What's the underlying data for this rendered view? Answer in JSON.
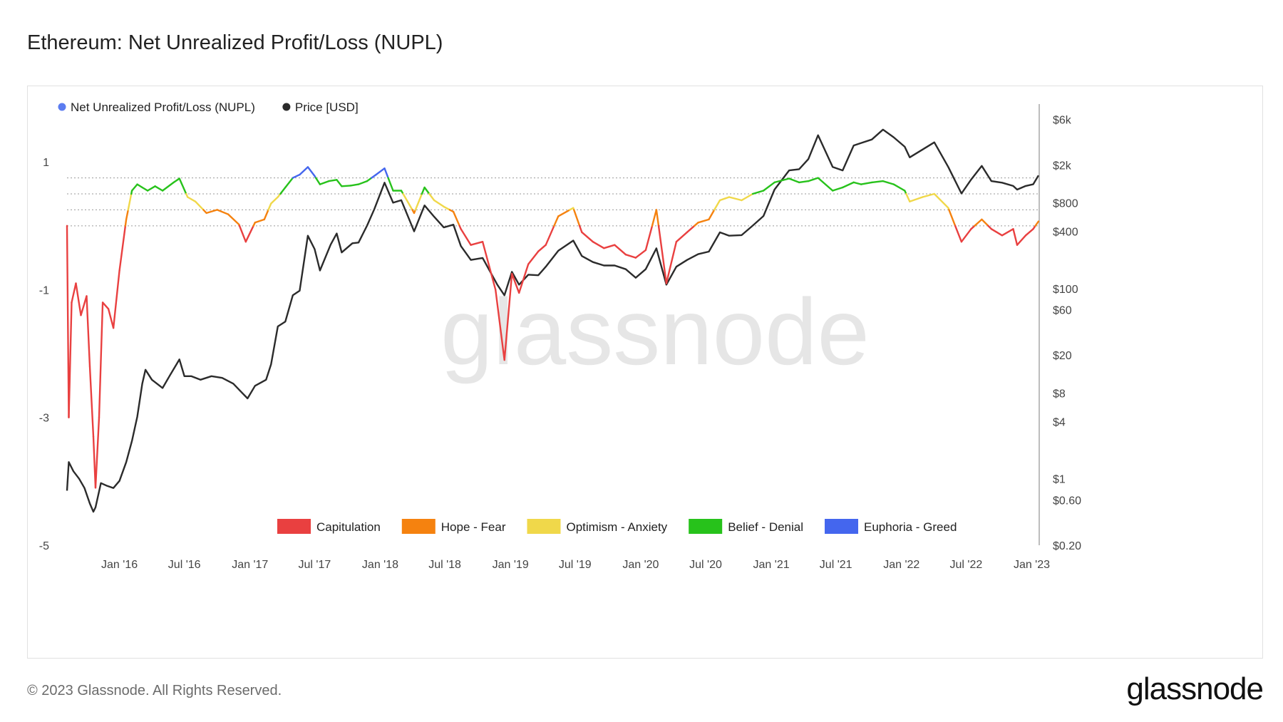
{
  "title": "Ethereum: Net Unrealized Profit/Loss (NUPL)",
  "footer": {
    "copyright": "© 2023 Glassnode. All Rights Reserved.",
    "brand": "glassnode"
  },
  "watermark": "glassnode",
  "colors": {
    "capitulation": "#e94040",
    "hope_fear": "#f5820f",
    "optimism_anxiety": "#f0d84a",
    "belief_denial": "#27c21b",
    "euphoria_greed": "#4466ee",
    "nupl_legend": "#5b7cf0",
    "price": "#2b2b2b"
  },
  "chart_data": {
    "type": "line",
    "title": "Ethereum: Net Unrealized Profit/Loss (NUPL)",
    "legend_top": [
      "Net Unrealized Profit/Loss (NUPL)",
      "Price [USD]"
    ],
    "legend_bottom": [
      "Capitulation",
      "Hope - Fear",
      "Optimism - Anxiety",
      "Belief - Denial",
      "Euphoria - Greed"
    ],
    "x_range": [
      "2015-08-07",
      "2023-01-20"
    ],
    "x_ticks": [
      "Jan '16",
      "Jul '16",
      "Jan '17",
      "Jul '17",
      "Jan '18",
      "Jul '18",
      "Jan '19",
      "Jul '19",
      "Jan '20",
      "Jul '20",
      "Jan '21",
      "Jul '21",
      "Jan '22",
      "Jul '22",
      "Jan '23"
    ],
    "x_tick_dates": [
      "2016-01-01",
      "2016-07-01",
      "2017-01-01",
      "2017-07-01",
      "2018-01-01",
      "2018-07-01",
      "2019-01-01",
      "2019-07-01",
      "2020-01-01",
      "2020-07-01",
      "2021-01-01",
      "2021-07-01",
      "2022-01-01",
      "2022-07-01",
      "2023-01-01"
    ],
    "y_left": {
      "ticks": [
        "1",
        "-1",
        "-3",
        "-5"
      ],
      "tick_values": [
        1,
        -1,
        -3,
        -5
      ],
      "range": [
        -5.0,
        1.85
      ]
    },
    "y_right": {
      "scale": "log",
      "range": [
        0.2,
        8000
      ],
      "ticks": [
        "$6k",
        "$2k",
        "$800",
        "$400",
        "$100",
        "$60",
        "$20",
        "$8",
        "$4",
        "$1",
        "$0.60",
        "$0.20"
      ],
      "tick_values": [
        6000,
        2000,
        800,
        400,
        100,
        60,
        20,
        8,
        4,
        1,
        0.6,
        0.2
      ]
    },
    "zone_thresholds": [
      0,
      0.25,
      0.5,
      0.75
    ],
    "series": [
      {
        "name": "Net Unrealized Profit/Loss (NUPL)",
        "axis": "left",
        "dates": [
          "2015-08-07",
          "2015-08-12",
          "2015-08-20",
          "2015-09-01",
          "2015-09-15",
          "2015-10-01",
          "2015-10-10",
          "2015-10-20",
          "2015-10-26",
          "2015-11-05",
          "2015-11-15",
          "2015-12-01",
          "2015-12-15",
          "2016-01-01",
          "2016-01-20",
          "2016-02-05",
          "2016-02-20",
          "2016-03-05",
          "2016-03-20",
          "2016-04-10",
          "2016-05-01",
          "2016-06-01",
          "2016-06-17",
          "2016-07-10",
          "2016-08-01",
          "2016-09-01",
          "2016-10-01",
          "2016-11-01",
          "2016-12-01",
          "2016-12-20",
          "2017-01-15",
          "2017-02-10",
          "2017-03-01",
          "2017-03-20",
          "2017-04-10",
          "2017-05-01",
          "2017-05-20",
          "2017-06-12",
          "2017-07-01",
          "2017-07-16",
          "2017-08-10",
          "2017-09-01",
          "2017-09-15",
          "2017-10-10",
          "2017-11-01",
          "2017-11-25",
          "2017-12-20",
          "2018-01-13",
          "2018-02-06",
          "2018-03-01",
          "2018-04-06",
          "2018-05-05",
          "2018-06-01",
          "2018-06-28",
          "2018-07-25",
          "2018-08-15",
          "2018-09-12",
          "2018-10-15",
          "2018-11-20",
          "2018-12-15",
          "2019-01-05",
          "2019-01-25",
          "2019-02-20",
          "2019-03-20",
          "2019-04-10",
          "2019-05-15",
          "2019-06-26",
          "2019-07-20",
          "2019-08-20",
          "2019-09-20",
          "2019-10-20",
          "2019-11-20",
          "2019-12-18",
          "2020-01-15",
          "2020-02-14",
          "2020-03-13",
          "2020-04-10",
          "2020-05-10",
          "2020-06-10",
          "2020-07-10",
          "2020-08-10",
          "2020-09-05",
          "2020-10-10",
          "2020-11-10",
          "2020-12-10",
          "2021-01-10",
          "2021-02-20",
          "2021-03-20",
          "2021-04-15",
          "2021-05-12",
          "2021-06-22",
          "2021-07-20",
          "2021-08-20",
          "2021-09-10",
          "2021-10-10",
          "2021-11-10",
          "2021-12-10",
          "2022-01-10",
          "2022-01-24",
          "2022-03-01",
          "2022-04-03",
          "2022-05-12",
          "2022-06-18",
          "2022-07-15",
          "2022-08-14",
          "2022-09-10",
          "2022-10-10",
          "2022-11-10",
          "2022-11-21",
          "2022-12-15",
          "2023-01-05",
          "2023-01-20"
        ],
        "values": [
          0.0,
          -3.0,
          -1.2,
          -0.9,
          -1.4,
          -1.1,
          -2.2,
          -3.3,
          -4.1,
          -3.0,
          -1.2,
          -1.3,
          -1.6,
          -0.7,
          0.1,
          0.55,
          0.65,
          0.6,
          0.55,
          0.62,
          0.55,
          0.68,
          0.74,
          0.45,
          0.38,
          0.2,
          0.25,
          0.18,
          0.02,
          -0.25,
          0.05,
          0.1,
          0.35,
          0.45,
          0.6,
          0.75,
          0.8,
          0.92,
          0.78,
          0.65,
          0.7,
          0.72,
          0.62,
          0.63,
          0.65,
          0.7,
          0.8,
          0.9,
          0.55,
          0.55,
          0.2,
          0.6,
          0.4,
          0.3,
          0.22,
          -0.05,
          -0.3,
          -0.25,
          -1.0,
          -2.1,
          -0.75,
          -1.05,
          -0.6,
          -0.4,
          -0.3,
          0.15,
          0.28,
          -0.1,
          -0.25,
          -0.35,
          -0.3,
          -0.45,
          -0.5,
          -0.38,
          0.25,
          -0.9,
          -0.25,
          -0.1,
          0.05,
          0.1,
          0.4,
          0.45,
          0.4,
          0.5,
          0.55,
          0.68,
          0.74,
          0.68,
          0.7,
          0.75,
          0.55,
          0.6,
          0.68,
          0.65,
          0.68,
          0.7,
          0.65,
          0.55,
          0.38,
          0.45,
          0.5,
          0.28,
          -0.25,
          -0.05,
          0.1,
          -0.05,
          -0.15,
          -0.05,
          -0.3,
          -0.15,
          -0.05,
          0.07
        ]
      },
      {
        "name": "Price [USD]",
        "axis": "right",
        "dates": [
          "2015-08-07",
          "2015-08-12",
          "2015-08-25",
          "2015-09-10",
          "2015-09-25",
          "2015-10-10",
          "2015-10-20",
          "2015-10-26",
          "2015-11-10",
          "2015-11-25",
          "2015-12-15",
          "2016-01-01",
          "2016-01-20",
          "2016-02-05",
          "2016-02-20",
          "2016-03-05",
          "2016-03-14",
          "2016-04-01",
          "2016-05-01",
          "2016-05-20",
          "2016-06-17",
          "2016-07-01",
          "2016-07-20",
          "2016-08-15",
          "2016-09-15",
          "2016-10-15",
          "2016-11-15",
          "2016-12-10",
          "2016-12-25",
          "2017-01-15",
          "2017-02-15",
          "2017-03-01",
          "2017-03-20",
          "2017-04-10",
          "2017-05-01",
          "2017-05-20",
          "2017-06-12",
          "2017-07-01",
          "2017-07-16",
          "2017-08-15",
          "2017-09-01",
          "2017-09-15",
          "2017-10-15",
          "2017-11-01",
          "2017-11-25",
          "2017-12-15",
          "2018-01-13",
          "2018-02-06",
          "2018-03-01",
          "2018-04-06",
          "2018-05-05",
          "2018-06-01",
          "2018-06-28",
          "2018-07-25",
          "2018-08-15",
          "2018-09-12",
          "2018-10-15",
          "2018-11-25",
          "2018-12-15",
          "2019-01-05",
          "2019-01-25",
          "2019-02-20",
          "2019-03-20",
          "2019-04-10",
          "2019-05-15",
          "2019-06-26",
          "2019-07-20",
          "2019-08-20",
          "2019-09-20",
          "2019-10-20",
          "2019-11-20",
          "2019-12-18",
          "2020-01-15",
          "2020-02-14",
          "2020-03-13",
          "2020-04-10",
          "2020-05-10",
          "2020-06-10",
          "2020-07-10",
          "2020-08-10",
          "2020-09-05",
          "2020-10-10",
          "2020-11-10",
          "2020-12-10",
          "2021-01-10",
          "2021-02-20",
          "2021-03-20",
          "2021-04-15",
          "2021-05-12",
          "2021-06-22",
          "2021-07-20",
          "2021-08-20",
          "2021-09-10",
          "2021-10-10",
          "2021-11-10",
          "2021-12-10",
          "2022-01-10",
          "2022-01-24",
          "2022-03-01",
          "2022-04-03",
          "2022-05-12",
          "2022-06-18",
          "2022-07-15",
          "2022-08-14",
          "2022-09-10",
          "2022-10-10",
          "2022-11-10",
          "2022-11-21",
          "2022-12-15",
          "2023-01-05",
          "2023-01-20"
        ],
        "values": [
          0.75,
          1.5,
          1.2,
          1.0,
          0.8,
          0.55,
          0.45,
          0.5,
          0.9,
          0.85,
          0.8,
          0.95,
          1.5,
          2.5,
          4.5,
          10,
          14,
          11,
          9,
          12,
          18,
          12,
          12,
          11,
          12,
          11.5,
          10,
          8,
          7,
          9.5,
          11,
          16,
          40,
          45,
          85,
          95,
          360,
          260,
          155,
          290,
          380,
          240,
          300,
          305,
          460,
          680,
          1300,
          800,
          850,
          400,
          750,
          570,
          440,
          470,
          280,
          200,
          210,
          110,
          85,
          150,
          110,
          140,
          138,
          170,
          250,
          320,
          220,
          190,
          175,
          175,
          160,
          130,
          160,
          265,
          110,
          170,
          200,
          230,
          245,
          390,
          360,
          365,
          460,
          580,
          1100,
          1750,
          1800,
          2300,
          4100,
          1900,
          1750,
          3200,
          3400,
          3700,
          4700,
          3900,
          3100,
          2400,
          2900,
          3450,
          1900,
          1000,
          1400,
          1950,
          1350,
          1300,
          1200,
          1100,
          1200,
          1250,
          1550
        ]
      }
    ]
  }
}
